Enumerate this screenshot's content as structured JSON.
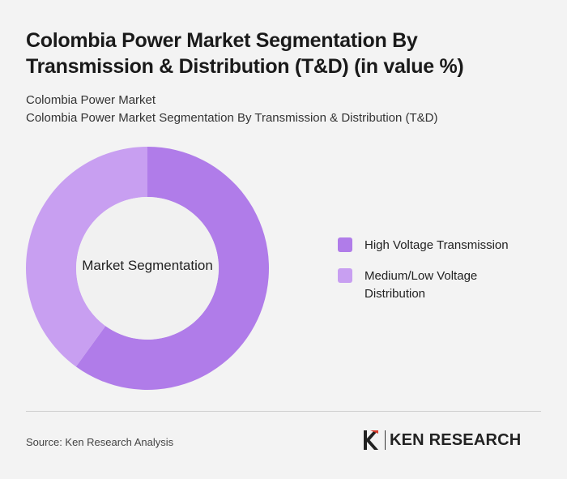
{
  "title": "Colombia Power Market Segmentation By Transmission & Distribution (T&D) (in value %)",
  "subtitle_lines": [
    "Colombia Power Market",
    "Colombia Power Market Segmentation By Transmission & Distribution (T&D)"
  ],
  "chart_data": {
    "type": "pie",
    "style": "donut",
    "center_label": "Market Segmentation",
    "categories": [
      "High Voltage Transmission",
      "Medium/Low Voltage Distribution"
    ],
    "values": [
      60,
      40
    ],
    "colors": [
      "#b07ce9",
      "#c89ff1"
    ],
    "legend_position": "right"
  },
  "legend": {
    "items": [
      {
        "label": "High Voltage Transmission",
        "color": "#b07ce9"
      },
      {
        "label": "Medium/Low Voltage Distribution",
        "color": "#c89ff1"
      }
    ]
  },
  "footer": {
    "source": "Source: Ken Research Analysis",
    "logo_text": "KEN RESEARCH"
  }
}
